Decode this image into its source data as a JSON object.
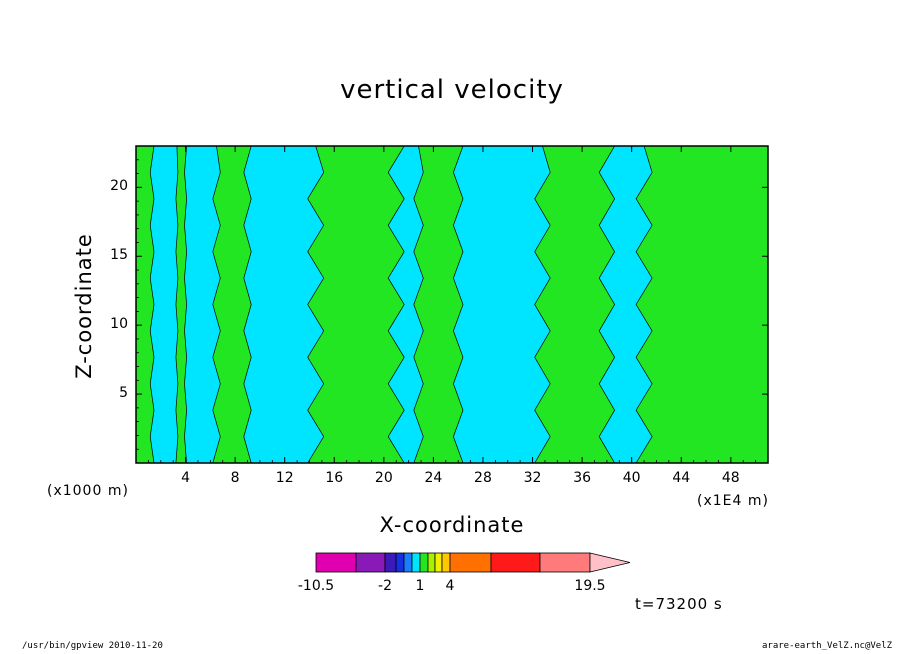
{
  "chart_data": {
    "type": "heatmap",
    "title": "vertical velocity",
    "xlabel": "X-coordinate",
    "ylabel": "Z-coordinate",
    "x_unit_label": "(x1000 m)",
    "x_scale_label": "(x1E4 m)",
    "xlim": [
      0,
      51
    ],
    "ylim": [
      0,
      23
    ],
    "x_ticks": [
      "4",
      "8",
      "12",
      "16",
      "20",
      "24",
      "28",
      "32",
      "36",
      "40",
      "44",
      "48"
    ],
    "x_tick_values": [
      4,
      8,
      12,
      16,
      20,
      24,
      28,
      32,
      36,
      40,
      44,
      48
    ],
    "y_ticks": [
      "5",
      "10",
      "15",
      "20"
    ],
    "y_tick_values": [
      5,
      10,
      15,
      20
    ],
    "field_colors": {
      "positive": "#22e622",
      "negative": "#00e5ff"
    },
    "green_regions_x": [
      [
        0.0,
        1.3
      ],
      [
        3.3,
        4.0
      ],
      [
        6.5,
        9.0
      ],
      [
        14.5,
        21.0
      ],
      [
        22.8,
        26.0
      ],
      [
        32.8,
        38.0
      ],
      [
        41.0,
        51.0
      ]
    ],
    "colorbar": {
      "colors": [
        "#e000b0",
        "#8a1ab8",
        "#3a1ab8",
        "#1430e0",
        "#1a7cff",
        "#00e5ff",
        "#22e622",
        "#a8f000",
        "#f0f000",
        "#ffc800",
        "#ff7000",
        "#ff1a1a",
        "#ff7a7a",
        "#ffc0c8"
      ],
      "tick_labels": [
        "-10.5",
        "-2",
        "1",
        "4",
        "19.5"
      ]
    },
    "time_label": "t=73200 s"
  },
  "footer": {
    "left": "/usr/bin/gpview   2010-11-20",
    "right": "arare-earth_VelZ.nc@VelZ"
  }
}
